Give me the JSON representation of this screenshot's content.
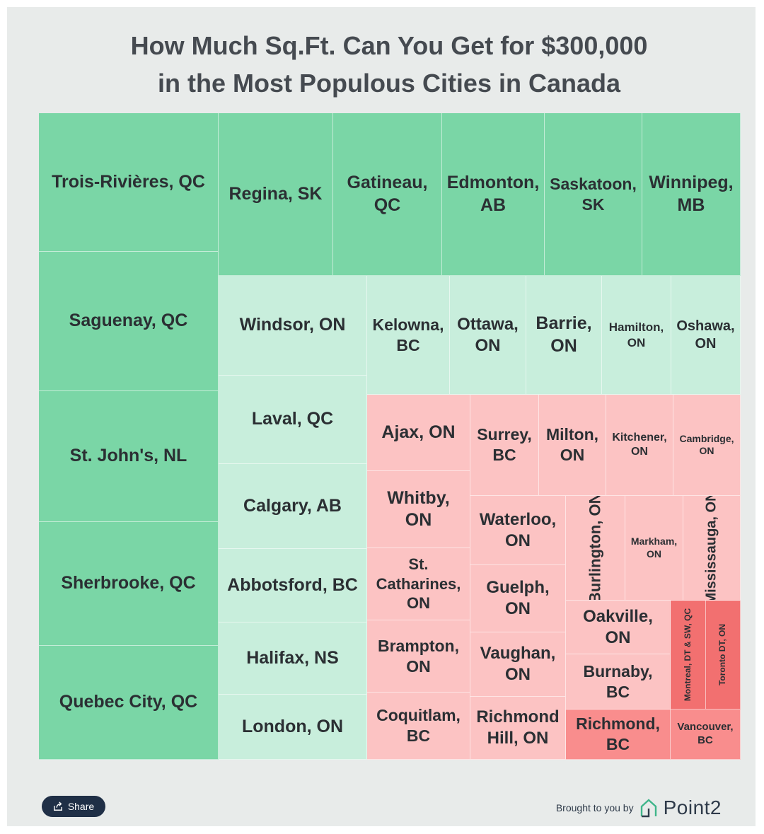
{
  "title_lines": [
    "How Much Sq.Ft. Can You Get for $300,000",
    "in the Most Populous Cities in Canada"
  ],
  "colors": {
    "green": "#7ad6a6",
    "light_green": "#c8eedc",
    "pink": "#fcc3c3",
    "salmon": "#f98d8d",
    "red": "#f27070"
  },
  "chart_data": {
    "type": "treemap",
    "title": "How Much Sq.Ft. Can You Get for $300,000 in the Most Populous Cities in Canada",
    "cities": [
      {
        "name": "Trois-Rivières, QC",
        "tier": "green"
      },
      {
        "name": "Saguenay, QC",
        "tier": "green"
      },
      {
        "name": "St. John's, NL",
        "tier": "green"
      },
      {
        "name": "Sherbrooke, QC",
        "tier": "green"
      },
      {
        "name": "Quebec City, QC",
        "tier": "green"
      },
      {
        "name": "Regina, SK",
        "tier": "green"
      },
      {
        "name": "Gatineau, QC",
        "tier": "green"
      },
      {
        "name": "Edmonton, AB",
        "tier": "green"
      },
      {
        "name": "Saskatoon, SK",
        "tier": "green"
      },
      {
        "name": "Winnipeg, MB",
        "tier": "green"
      },
      {
        "name": "Windsor, ON",
        "tier": "light_green"
      },
      {
        "name": "Laval, QC",
        "tier": "light_green"
      },
      {
        "name": "Calgary, AB",
        "tier": "light_green"
      },
      {
        "name": "Abbotsford, BC",
        "tier": "light_green"
      },
      {
        "name": "Halifax, NS",
        "tier": "light_green"
      },
      {
        "name": "London, ON",
        "tier": "light_green"
      },
      {
        "name": "Kelowna, BC",
        "tier": "light_green"
      },
      {
        "name": "Ottawa, ON",
        "tier": "light_green"
      },
      {
        "name": "Barrie, ON",
        "tier": "light_green"
      },
      {
        "name": "Hamilton, ON",
        "tier": "light_green"
      },
      {
        "name": "Oshawa, ON",
        "tier": "light_green"
      },
      {
        "name": "Ajax, ON",
        "tier": "pink"
      },
      {
        "name": "Whitby, ON",
        "tier": "pink"
      },
      {
        "name": "St. Catharines, ON",
        "tier": "pink"
      },
      {
        "name": "Brampton, ON",
        "tier": "pink"
      },
      {
        "name": "Coquitlam, BC",
        "tier": "pink"
      },
      {
        "name": "Surrey, BC",
        "tier": "pink"
      },
      {
        "name": "Milton, ON",
        "tier": "pink"
      },
      {
        "name": "Kitchener, ON",
        "tier": "pink"
      },
      {
        "name": "Cambridge, ON",
        "tier": "pink"
      },
      {
        "name": "Waterloo, ON",
        "tier": "pink"
      },
      {
        "name": "Guelph, ON",
        "tier": "pink"
      },
      {
        "name": "Vaughan, ON",
        "tier": "pink"
      },
      {
        "name": "Richmond Hill, ON",
        "tier": "pink"
      },
      {
        "name": "Burlington, ON",
        "tier": "pink"
      },
      {
        "name": "Markham, ON",
        "tier": "pink"
      },
      {
        "name": "Mississauga, ON",
        "tier": "pink"
      },
      {
        "name": "Oakville, ON",
        "tier": "pink"
      },
      {
        "name": "Burnaby, BC",
        "tier": "pink"
      },
      {
        "name": "Richmond, BC",
        "tier": "salmon"
      },
      {
        "name": "Montreal, DT & SW, QC",
        "tier": "red"
      },
      {
        "name": "Toronto DT, ON",
        "tier": "red"
      },
      {
        "name": "Vancouver, BC",
        "tier": "salmon"
      }
    ]
  },
  "footer": {
    "share_label": "Share",
    "brought_by": "Brought to you by",
    "brand": "Point2",
    "brand_colors": {
      "main": "#2f3b4a",
      "accent": "#3fb58a"
    }
  }
}
